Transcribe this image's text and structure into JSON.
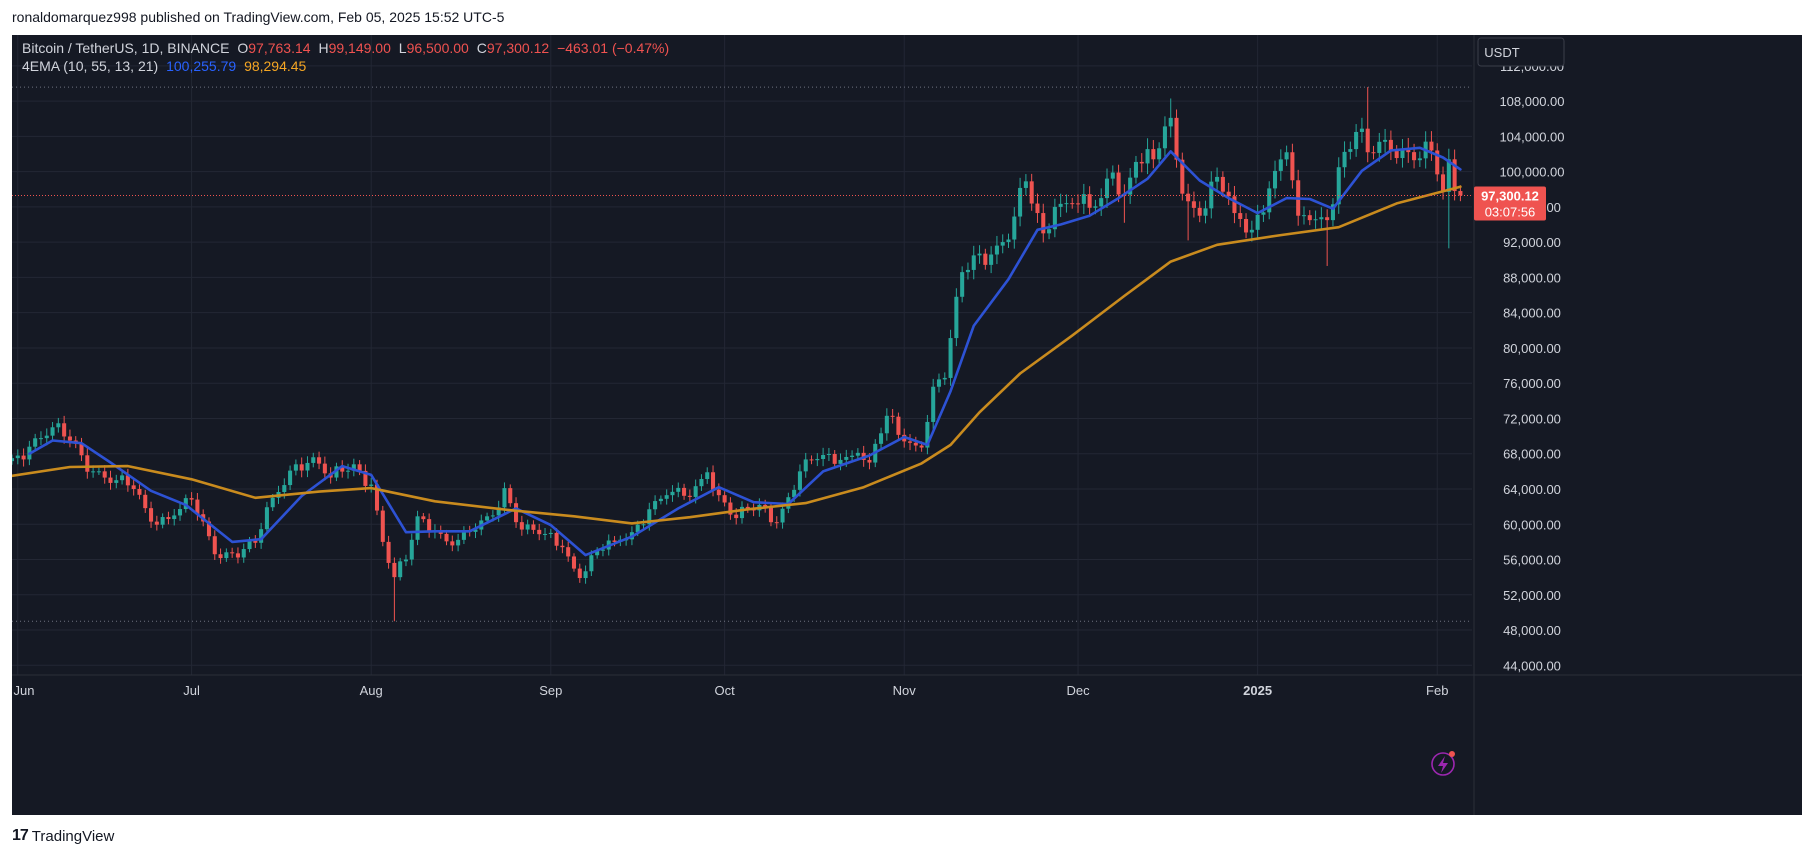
{
  "header": {
    "published": "ronaldomarquez998 published on TradingView.com, Feb 05, 2025 15:52 UTC-5"
  },
  "legend": {
    "symbol": "Bitcoin / TetherUS, 1D, BINANCE",
    "o_label": "O",
    "o_value": "97,763.14",
    "h_label": "H",
    "h_value": "99,149.00",
    "l_label": "L",
    "l_value": "96,500.00",
    "c_label": "C",
    "c_value": "97,300.12",
    "change": "−463.01 (−0.47%)",
    "indicator": "4EMA (10, 55, 13, 21)",
    "ema_fast_value": "100,255.79",
    "ema_slow_value": "98,294.45"
  },
  "currency_button": "USDT",
  "price_label": {
    "price": "97,300.12",
    "countdown": "03:07:56"
  },
  "footer": {
    "brand": "TradingView",
    "logo_mark": "17"
  },
  "colors": {
    "background": "#151924",
    "grid": "#232734",
    "up": "#26a69a",
    "down": "#ef5350",
    "ema_fast": "#2d52d4",
    "ema_slow": "#c98b1e",
    "axis_text": "#d1d4dc"
  },
  "chart_data": {
    "type": "candlestick",
    "title": "Bitcoin / TetherUS, 1D, BINANCE",
    "y_ticks": [
      "112,000.00",
      "108,000.00",
      "104,000.00",
      "100,000.00",
      "96,000.00",
      "92,000.00",
      "88,000.00",
      "84,000.00",
      "80,000.00",
      "76,000.00",
      "72,000.00",
      "68,000.00",
      "64,000.00",
      "60,000.00",
      "56,000.00",
      "52,000.00",
      "48,000.00",
      "44,000.00"
    ],
    "y_tick_values": [
      112000,
      108000,
      104000,
      100000,
      96000,
      92000,
      88000,
      84000,
      80000,
      76000,
      72000,
      68000,
      64000,
      60000,
      56000,
      52000,
      48000,
      44000
    ],
    "ylim": [
      42900,
      115500
    ],
    "x_ticks": [
      {
        "label": "Jun",
        "date": "2024-06-01",
        "bold": false
      },
      {
        "label": "Jul",
        "date": "2024-07-01",
        "bold": false
      },
      {
        "label": "Aug",
        "date": "2024-08-01",
        "bold": false
      },
      {
        "label": "Sep",
        "date": "2024-09-01",
        "bold": false
      },
      {
        "label": "Oct",
        "date": "2024-10-01",
        "bold": false
      },
      {
        "label": "Nov",
        "date": "2024-11-01",
        "bold": false
      },
      {
        "label": "Dec",
        "date": "2024-12-01",
        "bold": false
      },
      {
        "label": "2025",
        "date": "2025-01-01",
        "bold": true
      },
      {
        "label": "Feb",
        "date": "2025-02-01",
        "bold": false
      }
    ],
    "xlim": [
      "2024-05-31",
      "2025-02-07"
    ],
    "range_lines": [
      109588,
      49000
    ],
    "current_price": 97300.12,
    "closes": [
      {
        "d": "2024-05-31",
        "c": 67500
      },
      {
        "d": "2024-06-03",
        "c": 68800
      },
      {
        "d": "2024-06-07",
        "c": 71000
      },
      {
        "d": "2024-06-10",
        "c": 69500
      },
      {
        "d": "2024-06-14",
        "c": 66000
      },
      {
        "d": "2024-06-18",
        "c": 65000
      },
      {
        "d": "2024-06-21",
        "c": 64000
      },
      {
        "d": "2024-06-24",
        "c": 60300
      },
      {
        "d": "2024-06-28",
        "c": 61000
      },
      {
        "d": "2024-07-01",
        "c": 62800
      },
      {
        "d": "2024-07-05",
        "c": 56600
      },
      {
        "d": "2024-07-08",
        "c": 56700
      },
      {
        "d": "2024-07-12",
        "c": 57900
      },
      {
        "d": "2024-07-15",
        "c": 63000
      },
      {
        "d": "2024-07-19",
        "c": 66800
      },
      {
        "d": "2024-07-22",
        "c": 67600
      },
      {
        "d": "2024-07-25",
        "c": 65300
      },
      {
        "d": "2024-07-29",
        "c": 66800
      },
      {
        "d": "2024-08-01",
        "c": 64500
      },
      {
        "d": "2024-08-03",
        "c": 58000
      },
      {
        "d": "2024-08-05",
        "c": 54000
      },
      {
        "d": "2024-08-07",
        "c": 56000
      },
      {
        "d": "2024-08-09",
        "c": 60900
      },
      {
        "d": "2024-08-12",
        "c": 59300
      },
      {
        "d": "2024-08-15",
        "c": 57600
      },
      {
        "d": "2024-08-19",
        "c": 59400
      },
      {
        "d": "2024-08-22",
        "c": 61000
      },
      {
        "d": "2024-08-24",
        "c": 64100
      },
      {
        "d": "2024-08-27",
        "c": 59400
      },
      {
        "d": "2024-08-31",
        "c": 58900
      },
      {
        "d": "2024-09-03",
        "c": 57400
      },
      {
        "d": "2024-09-06",
        "c": 53900
      },
      {
        "d": "2024-09-09",
        "c": 57000
      },
      {
        "d": "2024-09-12",
        "c": 58000
      },
      {
        "d": "2024-09-15",
        "c": 59100
      },
      {
        "d": "2024-09-18",
        "c": 61700
      },
      {
        "d": "2024-09-21",
        "c": 63300
      },
      {
        "d": "2024-09-25",
        "c": 63100
      },
      {
        "d": "2024-09-28",
        "c": 65900
      },
      {
        "d": "2024-09-30",
        "c": 63300
      },
      {
        "d": "2024-10-03",
        "c": 60700
      },
      {
        "d": "2024-10-07",
        "c": 62200
      },
      {
        "d": "2024-10-10",
        "c": 60200
      },
      {
        "d": "2024-10-14",
        "c": 66000
      },
      {
        "d": "2024-10-17",
        "c": 67400
      },
      {
        "d": "2024-10-21",
        "c": 67300
      },
      {
        "d": "2024-10-24",
        "c": 68100
      },
      {
        "d": "2024-10-26",
        "c": 67000
      },
      {
        "d": "2024-10-29",
        "c": 72300
      },
      {
        "d": "2024-11-01",
        "c": 69400
      },
      {
        "d": "2024-11-04",
        "c": 68700
      },
      {
        "d": "2024-11-06",
        "c": 75600
      },
      {
        "d": "2024-11-08",
        "c": 76600
      },
      {
        "d": "2024-11-11",
        "c": 88600
      },
      {
        "d": "2024-11-13",
        "c": 90500
      },
      {
        "d": "2024-11-16",
        "c": 90600
      },
      {
        "d": "2024-11-19",
        "c": 92300
      },
      {
        "d": "2024-11-22",
        "c": 98900
      },
      {
        "d": "2024-11-25",
        "c": 93000
      },
      {
        "d": "2024-11-27",
        "c": 96000
      },
      {
        "d": "2024-11-30",
        "c": 96400
      },
      {
        "d": "2024-12-03",
        "c": 95900
      },
      {
        "d": "2024-12-05",
        "c": 97000
      },
      {
        "d": "2024-12-07",
        "c": 99900
      },
      {
        "d": "2024-12-09",
        "c": 97400
      },
      {
        "d": "2024-12-11",
        "c": 101100
      },
      {
        "d": "2024-12-14",
        "c": 101400
      },
      {
        "d": "2024-12-17",
        "c": 106100
      },
      {
        "d": "2024-12-19",
        "c": 97500
      },
      {
        "d": "2024-12-22",
        "c": 95000
      },
      {
        "d": "2024-12-25",
        "c": 99400
      },
      {
        "d": "2024-12-28",
        "c": 95300
      },
      {
        "d": "2024-12-31",
        "c": 93400
      },
      {
        "d": "2025-01-03",
        "c": 98100
      },
      {
        "d": "2025-01-06",
        "c": 102200
      },
      {
        "d": "2025-01-08",
        "c": 95000
      },
      {
        "d": "2025-01-10",
        "c": 94500
      },
      {
        "d": "2025-01-13",
        "c": 94500
      },
      {
        "d": "2025-01-15",
        "c": 100500
      },
      {
        "d": "2025-01-18",
        "c": 104500
      },
      {
        "d": "2025-01-20",
        "c": 102200
      },
      {
        "d": "2025-01-23",
        "c": 103600
      },
      {
        "d": "2025-01-26",
        "c": 102600
      },
      {
        "d": "2025-01-28",
        "c": 101300
      },
      {
        "d": "2025-01-31",
        "c": 102400
      },
      {
        "d": "2025-02-02",
        "c": 97700
      },
      {
        "d": "2025-02-03",
        "c": 101400
      },
      {
        "d": "2025-02-04",
        "c": 97800
      },
      {
        "d": "2025-02-05",
        "c": 97300
      }
    ],
    "series": [
      {
        "name": "EMA 10",
        "color": "#2d52d4",
        "points": [
          {
            "d": "2024-06-03",
            "v": 68000
          },
          {
            "d": "2024-06-07",
            "v": 69500
          },
          {
            "d": "2024-06-12",
            "v": 69200
          },
          {
            "d": "2024-06-17",
            "v": 67000
          },
          {
            "d": "2024-06-24",
            "v": 63800
          },
          {
            "d": "2024-06-30",
            "v": 62200
          },
          {
            "d": "2024-07-08",
            "v": 58000
          },
          {
            "d": "2024-07-13",
            "v": 58300
          },
          {
            "d": "2024-07-20",
            "v": 63200
          },
          {
            "d": "2024-07-27",
            "v": 66600
          },
          {
            "d": "2024-08-01",
            "v": 65600
          },
          {
            "d": "2024-08-07",
            "v": 59100
          },
          {
            "d": "2024-08-12",
            "v": 59200
          },
          {
            "d": "2024-08-18",
            "v": 59200
          },
          {
            "d": "2024-08-26",
            "v": 61800
          },
          {
            "d": "2024-09-01",
            "v": 59900
          },
          {
            "d": "2024-09-07",
            "v": 56500
          },
          {
            "d": "2024-09-15",
            "v": 58600
          },
          {
            "d": "2024-09-23",
            "v": 61800
          },
          {
            "d": "2024-09-30",
            "v": 64200
          },
          {
            "d": "2024-10-06",
            "v": 62500
          },
          {
            "d": "2024-10-12",
            "v": 62300
          },
          {
            "d": "2024-10-18",
            "v": 66000
          },
          {
            "d": "2024-10-26",
            "v": 67800
          },
          {
            "d": "2024-11-01",
            "v": 69900
          },
          {
            "d": "2024-11-05",
            "v": 69000
          },
          {
            "d": "2024-11-09",
            "v": 75100
          },
          {
            "d": "2024-11-13",
            "v": 82500
          },
          {
            "d": "2024-11-19",
            "v": 87800
          },
          {
            "d": "2024-11-24",
            "v": 93400
          },
          {
            "d": "2024-11-28",
            "v": 94000
          },
          {
            "d": "2024-12-03",
            "v": 95000
          },
          {
            "d": "2024-12-08",
            "v": 97000
          },
          {
            "d": "2024-12-13",
            "v": 99200
          },
          {
            "d": "2024-12-17",
            "v": 102300
          },
          {
            "d": "2024-12-22",
            "v": 99000
          },
          {
            "d": "2024-12-27",
            "v": 97000
          },
          {
            "d": "2025-01-01",
            "v": 95300
          },
          {
            "d": "2025-01-06",
            "v": 97000
          },
          {
            "d": "2025-01-10",
            "v": 96900
          },
          {
            "d": "2025-01-14",
            "v": 95800
          },
          {
            "d": "2025-01-19",
            "v": 100100
          },
          {
            "d": "2025-01-24",
            "v": 102400
          },
          {
            "d": "2025-01-29",
            "v": 102700
          },
          {
            "d": "2025-02-02",
            "v": 101600
          },
          {
            "d": "2025-02-05",
            "v": 100256
          }
        ]
      },
      {
        "name": "EMA 55",
        "color": "#c98b1e",
        "points": [
          {
            "d": "2024-05-31",
            "v": 65500
          },
          {
            "d": "2024-06-10",
            "v": 66500
          },
          {
            "d": "2024-06-20",
            "v": 66600
          },
          {
            "d": "2024-07-01",
            "v": 65100
          },
          {
            "d": "2024-07-12",
            "v": 63000
          },
          {
            "d": "2024-07-23",
            "v": 63700
          },
          {
            "d": "2024-08-01",
            "v": 64100
          },
          {
            "d": "2024-08-12",
            "v": 62600
          },
          {
            "d": "2024-08-25",
            "v": 61600
          },
          {
            "d": "2024-09-05",
            "v": 60900
          },
          {
            "d": "2024-09-15",
            "v": 60100
          },
          {
            "d": "2024-09-25",
            "v": 60800
          },
          {
            "d": "2024-10-05",
            "v": 61700
          },
          {
            "d": "2024-10-15",
            "v": 62400
          },
          {
            "d": "2024-10-25",
            "v": 64200
          },
          {
            "d": "2024-11-04",
            "v": 66900
          },
          {
            "d": "2024-11-09",
            "v": 69000
          },
          {
            "d": "2024-11-14",
            "v": 72700
          },
          {
            "d": "2024-11-21",
            "v": 77100
          },
          {
            "d": "2024-11-30",
            "v": 81400
          },
          {
            "d": "2024-12-09",
            "v": 85900
          },
          {
            "d": "2024-12-17",
            "v": 89800
          },
          {
            "d": "2024-12-25",
            "v": 91700
          },
          {
            "d": "2025-01-05",
            "v": 92800
          },
          {
            "d": "2025-01-15",
            "v": 93700
          },
          {
            "d": "2025-01-25",
            "v": 96400
          },
          {
            "d": "2025-02-05",
            "v": 98294
          }
        ]
      }
    ]
  }
}
